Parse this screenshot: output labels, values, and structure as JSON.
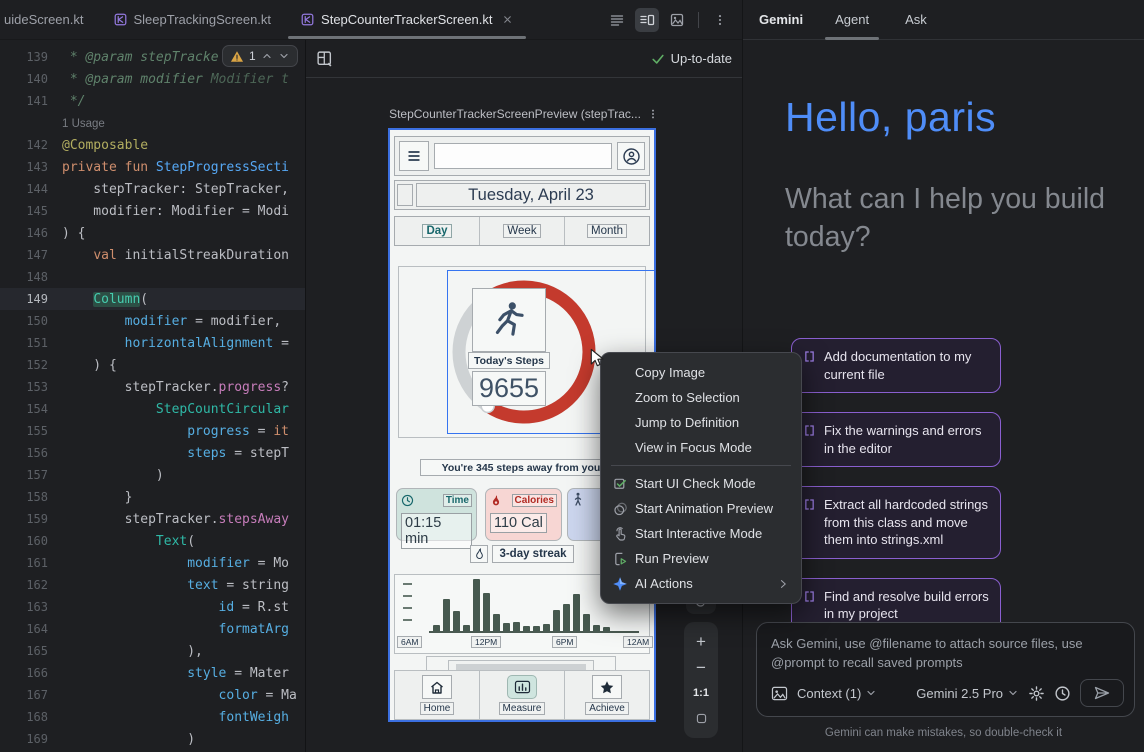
{
  "tabs": [
    {
      "label": "uideScreen.kt",
      "icon": false,
      "active": false,
      "closable": false
    },
    {
      "label": "SleepTrackingScreen.kt",
      "icon": true,
      "active": false,
      "closable": false
    },
    {
      "label": "StepCounterTrackerScreen.kt",
      "icon": true,
      "active": true,
      "closable": true
    }
  ],
  "editor_toolbar": [
    {
      "name": "code-view-icon",
      "active": false
    },
    {
      "name": "split-view-icon",
      "active": true
    },
    {
      "name": "design-view-icon",
      "active": false
    },
    {
      "name": "more-options-icon",
      "active": false,
      "divider_before": true
    }
  ],
  "editor": {
    "warning_count": "1",
    "lines": [
      {
        "n": 139,
        "t": [
          [
            "c",
            " * @param stepTracke"
          ]
        ]
      },
      {
        "n": 140,
        "t": [
          [
            "c",
            " * @param modifier "
          ],
          [
            "ci",
            "Modifier t"
          ]
        ]
      },
      {
        "n": 141,
        "t": [
          [
            "c",
            " */"
          ]
        ]
      },
      {
        "hint": "1 Usage"
      },
      {
        "n": 142,
        "t": [
          [
            "an",
            "@Composable"
          ]
        ]
      },
      {
        "n": 143,
        "t": [
          [
            "k",
            "private fun "
          ],
          [
            "fn",
            "StepProgressSecti"
          ]
        ]
      },
      {
        "n": 144,
        "t": [
          [
            "w",
            "    stepTracker: StepTracker,"
          ]
        ]
      },
      {
        "n": 145,
        "t": [
          [
            "w",
            "    modifier: Modifier = Modi"
          ]
        ]
      },
      {
        "n": 146,
        "t": [
          [
            "w",
            ") {"
          ]
        ]
      },
      {
        "n": 147,
        "t": [
          [
            "w",
            "    "
          ],
          [
            "k",
            "val "
          ],
          [
            "w",
            "initialStreakDuration"
          ]
        ]
      },
      {
        "n": 148,
        "t": [
          [
            "w",
            ""
          ]
        ]
      },
      {
        "n": 149,
        "cur": true,
        "t": [
          [
            "w",
            "    "
          ],
          [
            "tlh",
            "Column"
          ],
          [
            "w",
            "("
          ]
        ]
      },
      {
        "n": 150,
        "t": [
          [
            "w",
            "        "
          ],
          [
            "cy",
            "modifier"
          ],
          [
            "w",
            " = modifier,"
          ]
        ]
      },
      {
        "n": 151,
        "t": [
          [
            "w",
            "        "
          ],
          [
            "cy",
            "horizontalAlignment"
          ],
          [
            "w",
            " ="
          ]
        ]
      },
      {
        "n": 152,
        "t": [
          [
            "w",
            "    ) {"
          ]
        ]
      },
      {
        "n": 153,
        "t": [
          [
            "w",
            "        stepTracker."
          ],
          [
            "mg",
            "progress"
          ],
          [
            "w",
            "?"
          ]
        ]
      },
      {
        "n": 154,
        "t": [
          [
            "w",
            "            "
          ],
          [
            "tl",
            "StepCountCircular"
          ]
        ]
      },
      {
        "n": 155,
        "t": [
          [
            "w",
            "                "
          ],
          [
            "cy",
            "progress"
          ],
          [
            "w",
            " = "
          ],
          [
            "k",
            "it"
          ]
        ]
      },
      {
        "n": 156,
        "t": [
          [
            "w",
            "                "
          ],
          [
            "cy",
            "steps"
          ],
          [
            "w",
            " = stepT"
          ]
        ]
      },
      {
        "n": 157,
        "t": [
          [
            "w",
            "            )"
          ]
        ]
      },
      {
        "n": 158,
        "t": [
          [
            "w",
            "        }"
          ]
        ]
      },
      {
        "n": 159,
        "t": [
          [
            "w",
            "        stepTracker."
          ],
          [
            "mg",
            "stepsAway"
          ]
        ]
      },
      {
        "n": 160,
        "t": [
          [
            "w",
            "            "
          ],
          [
            "tl",
            "Text"
          ],
          [
            "w",
            "("
          ]
        ]
      },
      {
        "n": 161,
        "t": [
          [
            "w",
            "                "
          ],
          [
            "cy",
            "modifier"
          ],
          [
            "w",
            " = Mo"
          ]
        ]
      },
      {
        "n": 162,
        "t": [
          [
            "w",
            "                "
          ],
          [
            "cy",
            "text"
          ],
          [
            "w",
            " = string"
          ]
        ]
      },
      {
        "n": 163,
        "t": [
          [
            "w",
            "                    "
          ],
          [
            "cy",
            "id"
          ],
          [
            "w",
            " = R.st"
          ]
        ]
      },
      {
        "n": 164,
        "t": [
          [
            "w",
            "                    "
          ],
          [
            "cy",
            "formatArg"
          ]
        ]
      },
      {
        "n": 165,
        "t": [
          [
            "w",
            "                ),"
          ]
        ]
      },
      {
        "n": 166,
        "t": [
          [
            "w",
            "                "
          ],
          [
            "cy",
            "style"
          ],
          [
            "w",
            " = Mater"
          ]
        ]
      },
      {
        "n": 167,
        "t": [
          [
            "w",
            "                    "
          ],
          [
            "cy",
            "color"
          ],
          [
            "w",
            " = Ma"
          ]
        ]
      },
      {
        "n": 168,
        "t": [
          [
            "w",
            "                    "
          ],
          [
            "cy",
            "fontWeigh"
          ]
        ]
      },
      {
        "n": 169,
        "t": [
          [
            "w",
            "                )"
          ]
        ]
      }
    ]
  },
  "preview": {
    "status": "Up-to-date",
    "title": "StepCounterTrackerScreenPreview (stepTrac...",
    "zoom_scale": "1:1",
    "device": {
      "date": "Tuesday, April 23",
      "tabs": [
        "Day",
        "Week",
        "Month"
      ],
      "active_tab": "Day",
      "steps_label": "Today's Steps",
      "steps_value": "9655",
      "away_text": "You're 345 steps away from your",
      "stats": [
        {
          "label": "Time",
          "value": "01:15 min",
          "icon": "clock-icon"
        },
        {
          "label": "Calories",
          "value": "110 Cal",
          "icon": "fire-icon"
        },
        {
          "label": "",
          "value": "",
          "icon": "walk-icon"
        }
      ],
      "streak": "3-day streak",
      "nav": [
        {
          "label": "Home",
          "icon": "home-icon",
          "active": false
        },
        {
          "label": "Measure",
          "icon": "chart-icon",
          "active": true
        },
        {
          "label": "Achieve",
          "icon": "star-icon",
          "active": false
        }
      ]
    }
  },
  "chart_data": {
    "type": "bar",
    "title": "",
    "x_tick_labels": [
      "6AM",
      "12PM",
      "6PM",
      "12AM"
    ],
    "values_relative": [
      12,
      62,
      38,
      12,
      100,
      73,
      33,
      16,
      18,
      9,
      9,
      13,
      40,
      51,
      71,
      33,
      11,
      7
    ],
    "bar_color": "#46594f",
    "grid": false,
    "legend": false,
    "y_axis": "unlabeled ticks"
  },
  "context_menu": {
    "items": [
      {
        "label": "Copy Image"
      },
      {
        "label": "Zoom to Selection"
      },
      {
        "label": "Jump to Definition"
      },
      {
        "label": "View in Focus Mode"
      },
      {
        "divider": true
      },
      {
        "label": "Start UI Check Mode",
        "icon": "ui-check-icon"
      },
      {
        "label": "Start Animation Preview",
        "icon": "animation-icon"
      },
      {
        "label": "Start Interactive Mode",
        "icon": "interactive-icon"
      },
      {
        "label": "Run Preview",
        "icon": "run-icon"
      },
      {
        "label": "AI Actions",
        "icon": "ai-actions-icon",
        "submenu": true
      }
    ]
  },
  "gemini": {
    "title": "Gemini",
    "tabs": [
      {
        "label": "Agent",
        "active": true
      },
      {
        "label": "Ask",
        "active": false
      }
    ],
    "greeting": "Hello, paris",
    "subtitle": "What can I help you build today?",
    "suggestions": [
      "Add documentation to my current file",
      "Fix the warnings and errors in the editor",
      "Extract all hardcoded strings from this class and move them into strings.xml",
      "Find and resolve build errors in my project"
    ],
    "input_placeholder": "Ask Gemini, use @filename to attach source files, use @prompt to recall saved prompts",
    "context_label": "Context (1)",
    "model_label": "Gemini 2.5 Pro",
    "disclaimer": "Gemini can make mistakes, so double-check it"
  },
  "colors": {
    "selection_blue": "#3574f0",
    "device_frame_blue": "#3b6fe0",
    "progress_red": "#c43a2d",
    "gemini_blue": "#4f8df8",
    "suggestion_purple": "#8a5fd0",
    "bar_green": "#46594f",
    "success_green": "#5fad65"
  }
}
